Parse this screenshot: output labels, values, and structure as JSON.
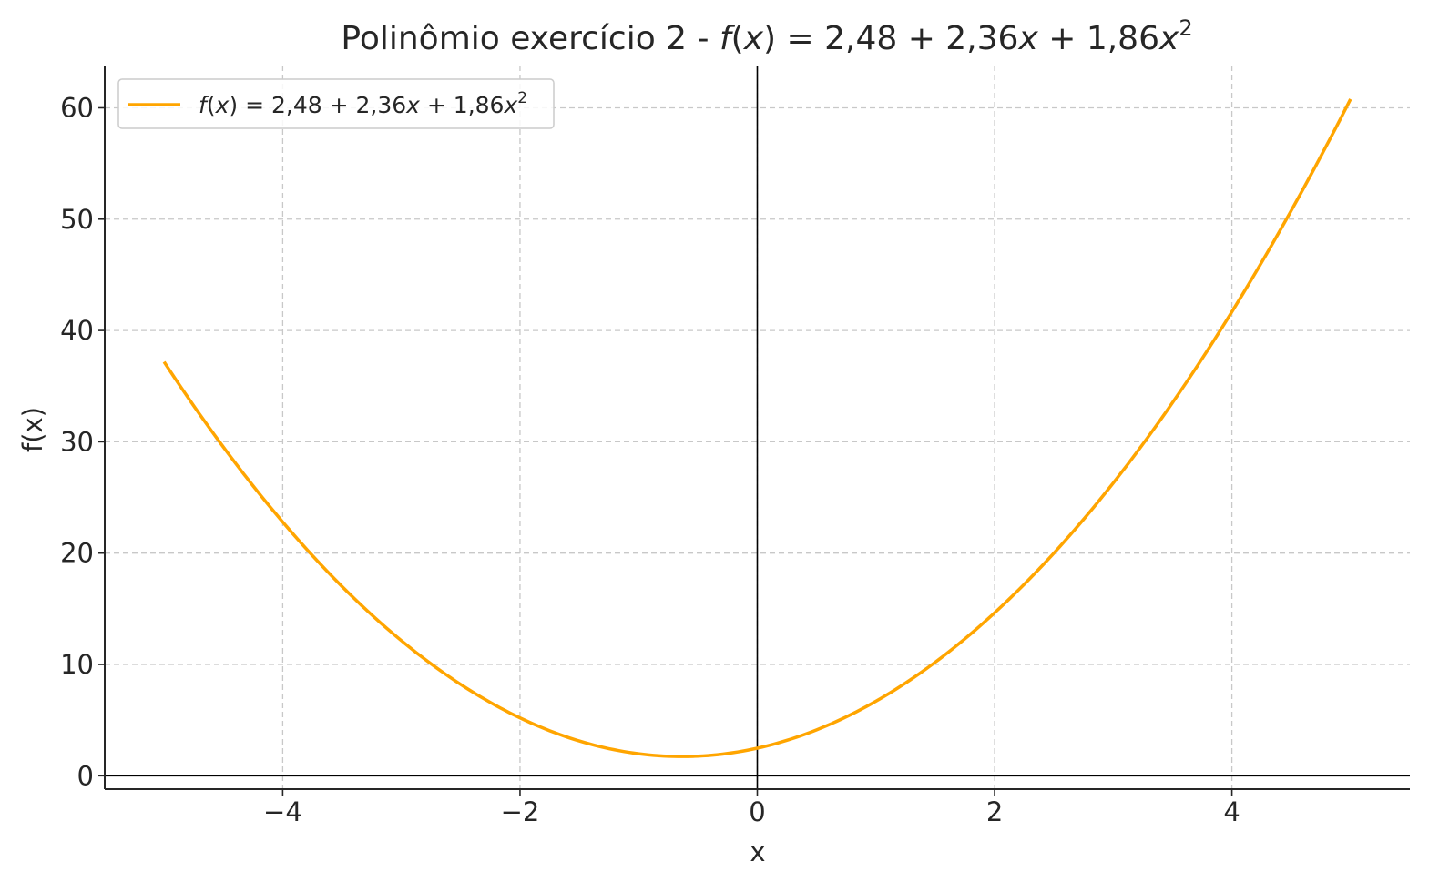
{
  "chart_data": {
    "type": "line",
    "title": {
      "prefix": "Polinômio exercício 2 - ",
      "f": "f",
      "open": "(",
      "var": "x",
      "close": ")",
      "eq": " = 2,48 + 2,36",
      "x_term": "x",
      "plus": " + 1,86",
      "x_sq": "x",
      "exp": "2"
    },
    "xlabel": "x",
    "ylabel": "f(x)",
    "xlim": [
      -5.5,
      5.5
    ],
    "ylim": [
      -1.2,
      63.8
    ],
    "xticks": [
      -4,
      -2,
      0,
      2,
      4
    ],
    "xtick_labels": [
      "−4",
      "−2",
      "0",
      "2",
      "4"
    ],
    "yticks": [
      0,
      10,
      20,
      30,
      40,
      50,
      60
    ],
    "ytick_labels": [
      "0",
      "10",
      "20",
      "30",
      "40",
      "50",
      "60"
    ],
    "grid": true,
    "legend_position": "top-left",
    "series": [
      {
        "name": {
          "f": "f",
          "open": "(",
          "var": "x",
          "close": ")",
          "eq": " = 2,48 + 2,36",
          "x_term": "x",
          "plus": " + 1,86",
          "x_sq": "x",
          "exp": "2"
        },
        "color": "#FFA500",
        "coefficients": [
          2.48,
          2.36,
          1.86
        ],
        "x_range": [
          -5,
          5
        ],
        "x": [
          -5,
          -4.5,
          -4,
          -3.5,
          -3,
          -2.5,
          -2,
          -1.5,
          -1,
          -0.5,
          -0.6344,
          0,
          0.5,
          1,
          1.5,
          2,
          2.5,
          3,
          3.5,
          4,
          4.5,
          5
        ],
        "y": [
          37.18,
          29.525,
          22.8,
          17.005,
          12.14,
          8.205,
          5.2,
          3.125,
          1.98,
          1.765,
          1.731,
          2.48,
          4.125,
          6.7,
          10.205,
          14.64,
          20.005,
          26.3,
          33.525,
          41.68,
          50.765,
          60.78
        ]
      }
    ]
  }
}
